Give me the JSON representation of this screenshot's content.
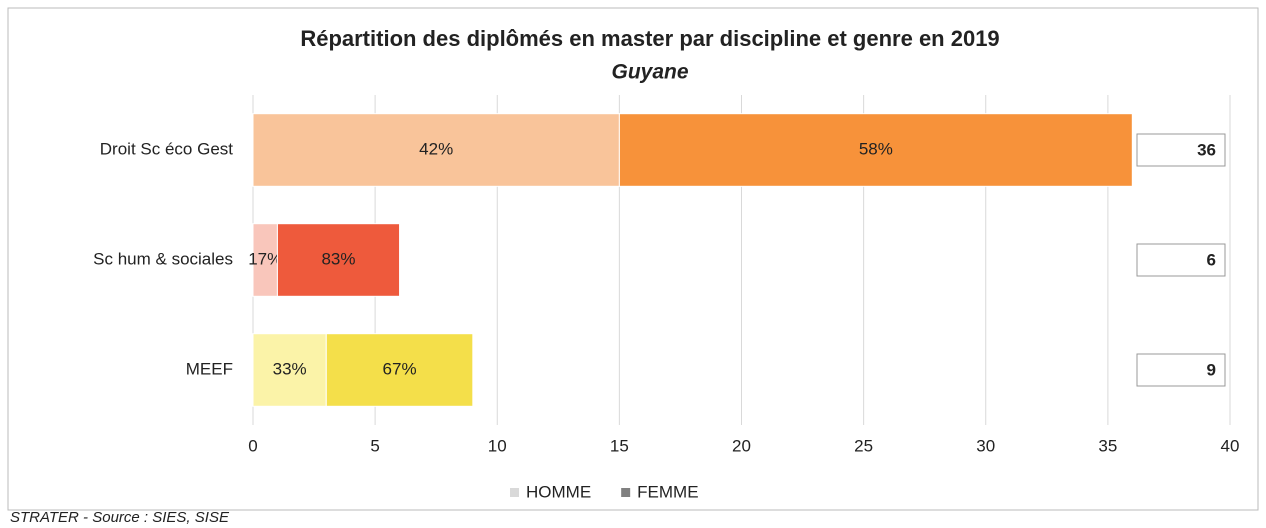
{
  "chart_data": {
    "type": "stacked_barh",
    "title": "Répartition des diplômés en master par discipline et genre en 2019",
    "subtitle": "Guyane",
    "categories": [
      "Droit Sc éco Gest",
      "Sc hum & sociales",
      "MEEF"
    ],
    "series": [
      {
        "name": "HOMME",
        "color": "#d9d9d9",
        "colors": [
          "#f9c49a",
          "#f9c6bb",
          "#fbf3a8"
        ],
        "values": [
          15,
          1,
          3
        ],
        "value_labels": [
          "42%",
          "17%",
          "33%"
        ]
      },
      {
        "name": "FEMME",
        "color": "#808080",
        "colors": [
          "#f7923a",
          "#ee5a3c",
          "#f4df4a"
        ],
        "values": [
          21,
          5,
          6
        ],
        "value_labels": [
          "58%",
          "83%",
          "67%"
        ]
      }
    ],
    "totals": [
      "36",
      "6",
      "9"
    ],
    "xlim": [
      0,
      40
    ],
    "xticks": [
      0,
      5,
      10,
      15,
      20,
      25,
      30,
      35,
      40
    ],
    "grid": true,
    "legend": "bottom",
    "source": "STRATER - Source : SIES, SISE"
  }
}
